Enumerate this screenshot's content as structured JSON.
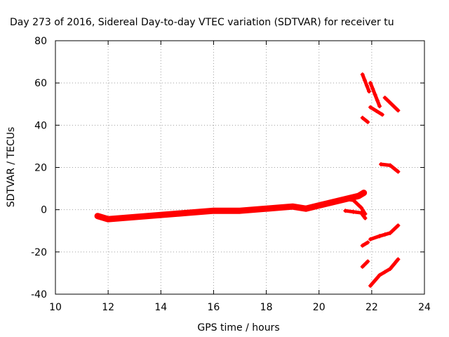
{
  "chart_data": {
    "type": "scatter",
    "title": "Day 273 of 2016, Sidereal Day-to-day VTEC variation (SDTVAR) for receiver tu",
    "xlabel": "GPS time / hours",
    "ylabel": "SDTVAR / TECUs",
    "xlim": [
      10,
      24
    ],
    "ylim": [
      -40,
      80
    ],
    "xticks": [
      "10",
      "12",
      "14",
      "16",
      "18",
      "20",
      "22",
      "24"
    ],
    "yticks": [
      "-40",
      "-20",
      "0",
      "20",
      "40",
      "60",
      "80"
    ],
    "grid": true,
    "marker_color": "#ff0000",
    "series": [
      {
        "type": "band",
        "x": [
          11.6,
          12.0,
          12.5,
          13.0,
          13.5,
          14.0,
          14.5,
          15.0,
          15.5,
          16.0,
          16.5,
          17.0,
          17.5,
          18.0,
          18.5,
          19.0,
          19.5,
          20.0,
          20.5,
          21.0,
          21.5,
          21.7
        ],
        "values": [
          -3,
          -4.5,
          -4,
          -3.5,
          -3,
          -2.5,
          -2,
          -1.5,
          -1,
          -0.5,
          -0.5,
          -0.5,
          0,
          0.5,
          1,
          1.5,
          0.5,
          2,
          3.5,
          5,
          6.5,
          8
        ]
      },
      {
        "type": "line",
        "x": [
          21.0,
          21.3,
          21.6,
          21.75
        ],
        "values": [
          -0.5,
          -1,
          -1.5,
          -4
        ]
      },
      {
        "type": "line",
        "x": [
          21.0,
          21.3,
          21.6,
          21.75
        ],
        "values": [
          5,
          4.5,
          1,
          -2
        ]
      },
      {
        "type": "line",
        "x": [
          21.65,
          21.9
        ],
        "values": [
          64,
          56
        ]
      },
      {
        "type": "line",
        "x": [
          21.95,
          22.3
        ],
        "values": [
          60,
          49
        ]
      },
      {
        "type": "line",
        "x": [
          21.95,
          22.4
        ],
        "values": [
          48.5,
          45
        ]
      },
      {
        "type": "line",
        "x": [
          21.65,
          21.85
        ],
        "values": [
          43.5,
          41.5
        ]
      },
      {
        "type": "line",
        "x": [
          22.5,
          23.0
        ],
        "values": [
          53,
          47
        ]
      },
      {
        "type": "line",
        "x": [
          22.35,
          22.7,
          23.0
        ],
        "values": [
          21.5,
          21,
          18
        ]
      },
      {
        "type": "line",
        "x": [
          21.65,
          21.85
        ],
        "values": [
          -17,
          -15.5
        ]
      },
      {
        "type": "line",
        "x": [
          21.95,
          22.3,
          22.7,
          23.0
        ],
        "values": [
          -14,
          -12.5,
          -11,
          -7.5
        ]
      },
      {
        "type": "line",
        "x": [
          21.65,
          21.85
        ],
        "values": [
          -27,
          -24.5
        ]
      },
      {
        "type": "line",
        "x": [
          21.95,
          22.3,
          22.7,
          23.0
        ],
        "values": [
          -36,
          -31,
          -28,
          -23.5
        ]
      }
    ]
  }
}
